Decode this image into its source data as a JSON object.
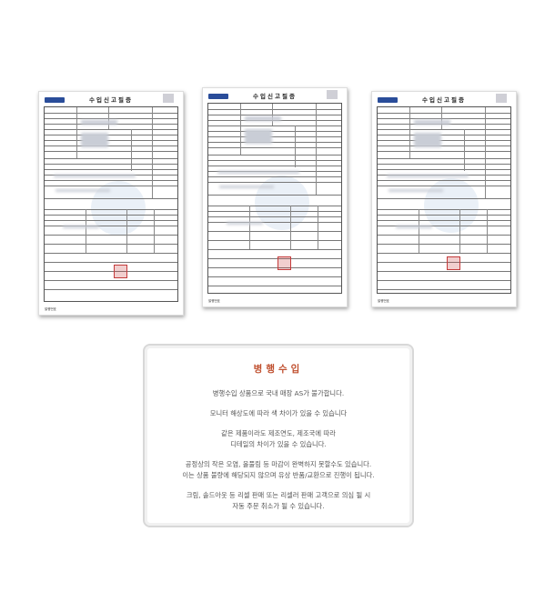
{
  "documents": [
    {
      "title": "수입신고필증",
      "footer": "발행번호"
    },
    {
      "title": "수입신고필증",
      "footer": "발행번호"
    },
    {
      "title": "수입신고필증",
      "footer": "발행번호"
    }
  ],
  "notice": {
    "title": "병행수입",
    "paragraphs": [
      [
        "병행수입 상품으로 국내 매장 AS가 불가합니다."
      ],
      [
        "모니터 해상도에 따라 색 차이가 있을 수 있습니다"
      ],
      [
        "같은 제품이라도 제조연도, 제조국에 따라",
        "디테일의 차이가 있을 수 있습니다."
      ],
      [
        "공정상의 작은 오염, 올풀림 등 마감이 완벽하지 못할수도 있습니다.",
        "이는 상품 불량에 해당되지 않으며 유상 반품/교환으로 진행이 됩니다."
      ],
      [
        "크림, 솔드아웃 등 리셀 판매 또는 리셀러 판매 고객으로 의심 될 시",
        "자동 주문 취소가 될 수 있습니다."
      ]
    ],
    "title_color": "#c0502f"
  }
}
